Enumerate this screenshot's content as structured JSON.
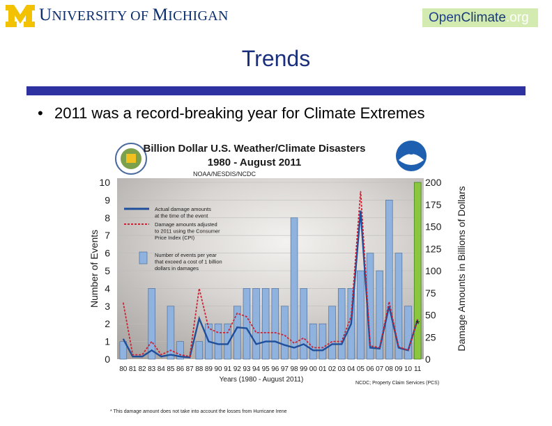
{
  "header": {
    "logo_letter": "M",
    "university_name_first": "U",
    "university_name_rest": "NIVERSITY OF ",
    "university_name_first2": "M",
    "university_name_rest2": "ICHIGAN",
    "badge_open": "Open",
    "badge_climate": "Climate",
    "badge_org": ".org"
  },
  "slide": {
    "title": "Trends",
    "bullet_symbol": "•",
    "bullet_text": "2011 was a record-breaking year for Climate Extremes"
  },
  "chart_data": {
    "type": "bar",
    "title": "Billion Dollar U.S. Weather/Climate Disasters",
    "subtitle": "1980 - August 2011",
    "source": "NOAA/NESDIS/NCDC",
    "credit": "NCDC; Property Claim Services (PCS)",
    "footnote": "* This damage amount does not take into account the losses from Hurricane Irene",
    "xlabel": "Years (1980 - August 2011)",
    "ylabel": "Number of Events",
    "y2label": "Damage Amounts in Billions of Dollars",
    "ylim": [
      0,
      10
    ],
    "y2lim": [
      0,
      200
    ],
    "yticks": [
      "0",
      "1",
      "2",
      "3",
      "4",
      "5",
      "6",
      "7",
      "8",
      "9",
      "10"
    ],
    "y2ticks": [
      "0",
      "25",
      "50",
      "75",
      "100",
      "125",
      "150",
      "175",
      "200"
    ],
    "categories": [
      "80",
      "81",
      "82",
      "83",
      "84",
      "85",
      "86",
      "87",
      "88",
      "89",
      "90",
      "91",
      "92",
      "93",
      "94",
      "95",
      "96",
      "97",
      "98",
      "99",
      "00",
      "01",
      "02",
      "03",
      "04",
      "05",
      "06",
      "07",
      "08",
      "09",
      "10",
      "11"
    ],
    "values": [
      1,
      0,
      0,
      4,
      0,
      3,
      1,
      0,
      1,
      2,
      2,
      2,
      3,
      4,
      4,
      4,
      4,
      3,
      8,
      4,
      2,
      2,
      3,
      4,
      4,
      5,
      6,
      5,
      9,
      6,
      3,
      10
    ],
    "highlight_last_bar_color": "#8cc63f",
    "bar_color": "#8fb3de",
    "series": [
      {
        "name": "Actual damage amounts at the time of the event",
        "color": "#1f4e9a",
        "values": [
          23,
          3,
          3,
          10,
          3,
          5,
          3,
          2,
          46,
          20,
          17,
          17,
          36,
          35,
          17,
          20,
          20,
          16,
          13,
          17,
          10,
          10,
          17,
          17,
          40,
          168,
          13,
          12,
          60,
          13,
          10,
          45
        ]
      },
      {
        "name": "Damage amounts adjusted to 2011 using the Consumer Price Index (CPI)",
        "color": "#cc2233",
        "values": [
          64,
          5,
          5,
          20,
          5,
          10,
          5,
          3,
          80,
          35,
          30,
          30,
          52,
          48,
          30,
          30,
          30,
          27,
          18,
          24,
          13,
          13,
          20,
          20,
          48,
          190,
          15,
          13,
          65,
          14,
          10,
          45
        ]
      }
    ],
    "legend": [
      {
        "label_lines": [
          "Actual damage amounts",
          "at the time of the event"
        ]
      },
      {
        "label_lines": [
          "Damage amounts adjusted",
          "to 2011 using the Consumer",
          "Price Index (CPI)"
        ]
      },
      {
        "label_lines": [
          "Number of events per year",
          "that exceed a cost of 1 billion",
          "dollars in damages"
        ]
      }
    ],
    "annotation": "*"
  }
}
